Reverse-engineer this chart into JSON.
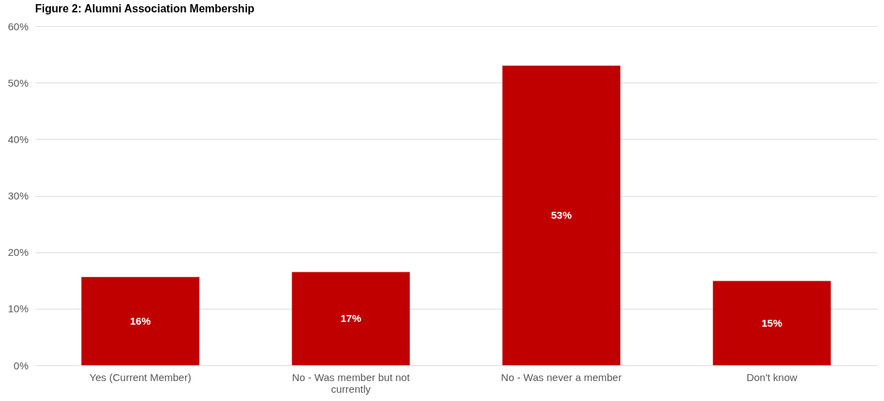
{
  "chart_data": {
    "type": "bar",
    "title": "Figure 2: Alumni Association Membership",
    "categories": [
      "Yes (Current Member)",
      "No - Was member but not currently",
      "No - Was never a member",
      "Don't know"
    ],
    "values": [
      15.6,
      16.5,
      53,
      14.9
    ],
    "value_labels": [
      "16%",
      "17%",
      "53%",
      "15%"
    ],
    "color": "#c00000",
    "ylim": [
      0,
      60
    ],
    "yticks": [
      {
        "value": 0,
        "label": "0%"
      },
      {
        "value": 10,
        "label": "10%"
      },
      {
        "value": 20,
        "label": "20%"
      },
      {
        "value": 30,
        "label": "30%"
      },
      {
        "value": 40,
        "label": "40%"
      },
      {
        "value": 50,
        "label": "50%"
      },
      {
        "value": 60,
        "label": "60%"
      }
    ],
    "grid": "y"
  }
}
